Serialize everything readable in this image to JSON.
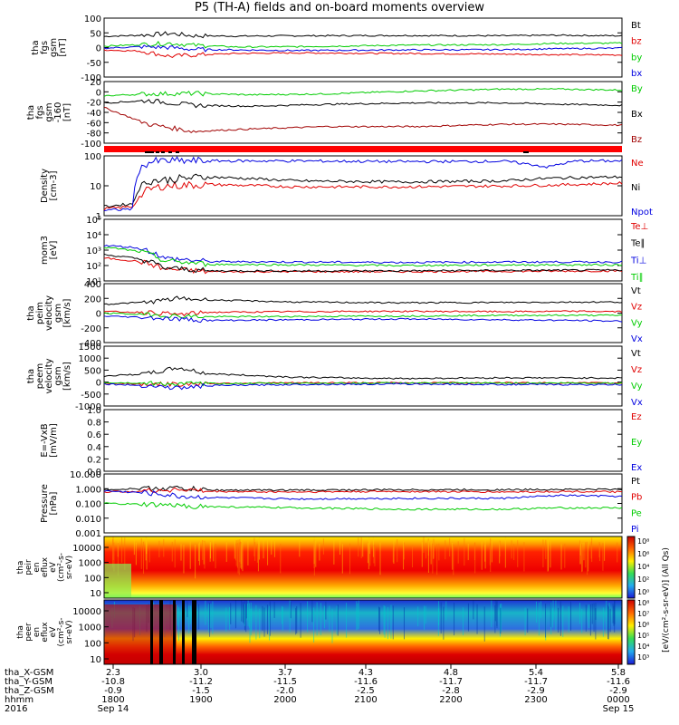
{
  "title": "P5 (TH-A) fields and on-board moments overview",
  "chart_data": [
    {
      "type": "line",
      "panel_id": "fgs",
      "ylabel": [
        "tha",
        "fgs",
        "gsm",
        "[nT]"
      ],
      "yticks": [
        "100",
        "50",
        "0",
        "-50",
        "-100"
      ],
      "ylim": [
        -100,
        100
      ],
      "legend": [
        {
          "label": "Bt",
          "color": "#000000"
        },
        {
          "label": "bz",
          "color": "#e00000"
        },
        {
          "label": "by",
          "color": "#00cc00"
        },
        {
          "label": "bx",
          "color": "#0000e0"
        }
      ],
      "series": [
        {
          "name": "Bt",
          "color": "#000000",
          "x": [
            2.3,
            2.55,
            2.75,
            2.9,
            3.2,
            3.6,
            4.3,
            5.0,
            5.35,
            5.8
          ],
          "y": [
            38,
            42,
            48,
            40,
            39,
            40,
            41,
            40,
            42,
            40
          ]
        },
        {
          "name": "bz",
          "color": "#e00000",
          "x": [
            2.3,
            2.55,
            2.75,
            2.9,
            3.2,
            3.6,
            4.3,
            5.0,
            5.35,
            5.8
          ],
          "y": [
            -8,
            -12,
            -30,
            -25,
            -20,
            -18,
            -20,
            -22,
            -24,
            -25
          ]
        },
        {
          "name": "by",
          "color": "#00cc00",
          "x": [
            2.3,
            2.55,
            2.75,
            2.9,
            3.2,
            3.6,
            4.3,
            5.0,
            5.35,
            5.8
          ],
          "y": [
            5,
            10,
            15,
            8,
            2,
            3,
            8,
            10,
            14,
            15
          ]
        },
        {
          "name": "bx",
          "color": "#0000e0",
          "x": [
            2.3,
            2.55,
            2.75,
            2.9,
            3.2,
            3.6,
            4.3,
            5.0,
            5.35,
            5.8
          ],
          "y": [
            -2,
            3,
            0,
            -6,
            -8,
            -10,
            -8,
            -7,
            -4,
            -2
          ]
        }
      ]
    },
    {
      "type": "line",
      "panel_id": "fgs_sm",
      "ylabel": [
        "tha",
        "fgs",
        "gsm",
        "-160",
        "[nT]"
      ],
      "yticks": [
        "20",
        "0",
        "-20",
        "-40",
        "-60",
        "-80",
        "-100"
      ],
      "ylim": [
        -100,
        30
      ],
      "legend": [
        {
          "label": "By",
          "color": "#00cc00"
        },
        {
          "label": "Bx",
          "color": "#000000"
        },
        {
          "label": "Bz",
          "color": "#a00000"
        }
      ],
      "series": [
        {
          "name": "By",
          "color": "#00cc00",
          "x": [
            2.3,
            2.6,
            2.9,
            3.3,
            3.8,
            4.4,
            5.0,
            5.4,
            5.8
          ],
          "y": [
            0,
            4,
            5,
            2,
            4,
            10,
            14,
            14,
            12
          ]
        },
        {
          "name": "Bx",
          "color": "#000000",
          "x": [
            2.3,
            2.6,
            2.9,
            3.3,
            3.8,
            4.4,
            5.0,
            5.4,
            5.8
          ],
          "y": [
            -15,
            -10,
            -20,
            -22,
            -18,
            -15,
            -15,
            -18,
            -20
          ]
        },
        {
          "name": "Bz",
          "color": "#a00000",
          "x": [
            2.3,
            2.6,
            2.9,
            3.3,
            3.8,
            4.4,
            5.0,
            5.4,
            5.8
          ],
          "y": [
            -25,
            -60,
            -75,
            -70,
            -65,
            -65,
            -60,
            -60,
            -62
          ]
        }
      ]
    },
    {
      "type": "line",
      "panel_id": "density",
      "yscale": "log",
      "ylabel": [
        "Density",
        "[cm-3]"
      ],
      "yticks": [
        "100",
        "10",
        "1"
      ],
      "ylim": [
        0.6,
        250
      ],
      "legend": [
        {
          "label": "Ne",
          "color": "#e00000"
        },
        {
          "label": "Ni",
          "color": "#000000"
        },
        {
          "label": "Npot",
          "color": "#0000e0"
        }
      ],
      "series": [
        {
          "name": "Ne",
          "color": "#e00000",
          "x": [
            2.3,
            2.5,
            2.6,
            2.7,
            3.0,
            3.6,
            4.3,
            5.0,
            5.3,
            5.5,
            5.8
          ],
          "y": [
            1.2,
            1.5,
            8,
            12,
            14,
            11,
            11,
            12,
            13,
            14,
            16
          ]
        },
        {
          "name": "Ni",
          "color": "#000000",
          "x": [
            2.3,
            2.5,
            2.6,
            2.7,
            3.0,
            3.6,
            4.3,
            5.0,
            5.3,
            5.5,
            5.8
          ],
          "y": [
            1.5,
            2,
            20,
            22,
            30,
            20,
            18,
            20,
            26,
            28,
            30
          ]
        },
        {
          "name": "Npot",
          "color": "#0000e0",
          "x": [
            2.3,
            2.5,
            2.6,
            2.7,
            3.0,
            3.6,
            4.3,
            5.0,
            5.3,
            5.5,
            5.8
          ],
          "y": [
            1.0,
            1.2,
            130,
            150,
            150,
            150,
            140,
            145,
            80,
            150,
            150
          ]
        }
      ]
    },
    {
      "type": "line",
      "panel_id": "temperature",
      "yscale": "log",
      "ylabel": [
        "mom3",
        "[eV]"
      ],
      "yticks": [
        "10⁵",
        "10⁴",
        "10³",
        "10²",
        "10¹"
      ],
      "ylim": [
        10,
        100000
      ],
      "legend": [
        {
          "label": "Te⊥",
          "color": "#e00000"
        },
        {
          "label": "Te∥",
          "color": "#000000"
        },
        {
          "label": "Ti⊥",
          "color": "#0000e0"
        },
        {
          "label": "Ti∥",
          "color": "#00cc00"
        }
      ],
      "series": [
        {
          "name": "Te⊥",
          "color": "#e00000",
          "x": [
            2.3,
            2.5,
            2.7,
            3.0,
            3.6,
            4.3,
            5.0,
            5.8
          ],
          "y": [
            300,
            200,
            60,
            40,
            40,
            40,
            42,
            45
          ]
        },
        {
          "name": "Te∥",
          "color": "#000000",
          "x": [
            2.3,
            2.5,
            2.7,
            3.0,
            3.6,
            4.3,
            5.0,
            5.8
          ],
          "y": [
            500,
            300,
            70,
            45,
            45,
            45,
            48,
            50
          ]
        },
        {
          "name": "Ti⊥",
          "color": "#0000e0",
          "x": [
            2.3,
            2.5,
            2.7,
            3.0,
            3.6,
            4.3,
            5.0,
            5.8
          ],
          "y": [
            2000,
            1500,
            300,
            180,
            170,
            160,
            170,
            170
          ]
        },
        {
          "name": "Ti∥",
          "color": "#00cc00",
          "x": [
            2.3,
            2.5,
            2.7,
            3.0,
            3.6,
            4.3,
            5.0,
            5.8
          ],
          "y": [
            1500,
            900,
            200,
            120,
            110,
            100,
            110,
            110
          ]
        }
      ]
    },
    {
      "type": "line",
      "panel_id": "peim_velocity",
      "ylabel": [
        "tha",
        "peim",
        "velocity",
        "gsm",
        "[km/s]"
      ],
      "yticks": [
        "400",
        "200",
        "0",
        "-200",
        "-400"
      ],
      "ylim": [
        -400,
        400
      ],
      "legend": [
        {
          "label": "Vt",
          "color": "#000000"
        },
        {
          "label": "Vz",
          "color": "#e00000"
        },
        {
          "label": "Vy",
          "color": "#00cc00"
        },
        {
          "label": "Vx",
          "color": "#0000e0"
        }
      ],
      "series": [
        {
          "name": "Vt",
          "color": "#000000",
          "x": [
            2.3,
            2.6,
            2.8,
            3.0,
            3.6,
            4.3,
            5.0,
            5.5,
            5.8
          ],
          "y": [
            120,
            150,
            200,
            180,
            150,
            140,
            145,
            150,
            150
          ]
        },
        {
          "name": "Vz",
          "color": "#e00000",
          "x": [
            2.3,
            2.6,
            2.8,
            3.0,
            3.6,
            4.3,
            5.0,
            5.5,
            5.8
          ],
          "y": [
            20,
            10,
            -20,
            10,
            20,
            25,
            20,
            25,
            20
          ]
        },
        {
          "name": "Vy",
          "color": "#00cc00",
          "x": [
            2.3,
            2.6,
            2.8,
            3.0,
            3.6,
            4.3,
            5.0,
            5.5,
            5.8
          ],
          "y": [
            0,
            -20,
            -40,
            -50,
            -45,
            -40,
            -30,
            -30,
            -30
          ]
        },
        {
          "name": "Vx",
          "color": "#0000e0",
          "x": [
            2.3,
            2.6,
            2.8,
            3.0,
            3.6,
            4.3,
            5.0,
            5.5,
            5.8
          ],
          "y": [
            -40,
            -60,
            -80,
            -100,
            -90,
            -80,
            -90,
            -100,
            -110
          ]
        }
      ]
    },
    {
      "type": "line",
      "panel_id": "peem_velocity",
      "ylabel": [
        "tha",
        "peem",
        "velocity",
        "gsm",
        "[km/s]"
      ],
      "yticks": [
        "1500",
        "1000",
        "500",
        "0",
        "-500",
        "-1000"
      ],
      "ylim": [
        -1000,
        1500
      ],
      "legend": [
        {
          "label": "Vt",
          "color": "#000000"
        },
        {
          "label": "Vz",
          "color": "#e00000"
        },
        {
          "label": "Vy",
          "color": "#00cc00"
        },
        {
          "label": "Vx",
          "color": "#0000e0"
        }
      ],
      "series": [
        {
          "name": "Vt",
          "color": "#000000",
          "x": [
            2.3,
            2.6,
            2.8,
            3.0,
            3.6,
            4.3,
            5.0,
            5.8
          ],
          "y": [
            250,
            350,
            600,
            350,
            200,
            150,
            180,
            170
          ]
        },
        {
          "name": "Vz",
          "color": "#e00000",
          "x": [
            2.3,
            2.6,
            2.8,
            3.0,
            3.6,
            4.3,
            5.0,
            5.8
          ],
          "y": [
            -50,
            -80,
            -100,
            -50,
            -30,
            -30,
            -30,
            -40
          ]
        },
        {
          "name": "Vy",
          "color": "#00cc00",
          "x": [
            2.3,
            2.6,
            2.8,
            3.0,
            3.6,
            4.3,
            5.0,
            5.8
          ],
          "y": [
            -20,
            -50,
            -80,
            -60,
            -50,
            -40,
            -40,
            -40
          ]
        },
        {
          "name": "Vx",
          "color": "#0000e0",
          "x": [
            2.3,
            2.6,
            2.8,
            3.0,
            3.6,
            4.3,
            5.0,
            5.8
          ],
          "y": [
            -80,
            -150,
            -250,
            -150,
            -100,
            -80,
            -100,
            -110
          ]
        }
      ]
    },
    {
      "type": "line",
      "panel_id": "efield",
      "ylabel": [
        "E=-VxB",
        "[mV/m]"
      ],
      "yticks": [
        "1.0",
        "0.8",
        "0.6",
        "0.4",
        "0.2",
        "0.0"
      ],
      "ylim": [
        0,
        1
      ],
      "legend": [
        {
          "label": "Ez",
          "color": "#e00000"
        },
        {
          "label": "Ey",
          "color": "#00cc00"
        },
        {
          "label": "Ex",
          "color": "#0000e0"
        }
      ],
      "series": []
    },
    {
      "type": "line",
      "panel_id": "pressure",
      "yscale": "log",
      "ylabel": [
        "Pressure",
        "[nPa]"
      ],
      "yticks": [
        "10.000",
        "1.000",
        "0.100",
        "0.010",
        "0.001"
      ],
      "ylim": [
        0.001,
        10
      ],
      "legend": [
        {
          "label": "Pt",
          "color": "#000000"
        },
        {
          "label": "Pb",
          "color": "#e00000"
        },
        {
          "label": "Pe",
          "color": "#00cc00"
        },
        {
          "label": "Pi",
          "color": "#0000e0"
        }
      ],
      "series": [
        {
          "name": "Pt",
          "color": "#000000",
          "x": [
            2.3,
            2.6,
            2.8,
            3.0,
            3.6,
            4.3,
            5.0,
            5.4,
            5.8
          ],
          "y": [
            0.9,
            1.0,
            1.1,
            0.8,
            0.8,
            0.85,
            0.85,
            0.9,
            0.9
          ]
        },
        {
          "name": "Pb",
          "color": "#e00000",
          "x": [
            2.3,
            2.6,
            2.8,
            3.0,
            3.6,
            4.3,
            5.0,
            5.4,
            5.8
          ],
          "y": [
            0.6,
            0.7,
            0.9,
            0.65,
            0.6,
            0.65,
            0.6,
            0.65,
            0.6
          ]
        },
        {
          "name": "Pe",
          "color": "#00cc00",
          "x": [
            2.3,
            2.6,
            2.8,
            3.0,
            3.6,
            4.3,
            5.0,
            5.4,
            5.8
          ],
          "y": [
            0.1,
            0.08,
            0.07,
            0.06,
            0.05,
            0.04,
            0.04,
            0.05,
            0.05
          ]
        },
        {
          "name": "Pi",
          "color": "#0000e0",
          "x": [
            2.3,
            2.6,
            2.8,
            3.0,
            3.6,
            4.3,
            5.0,
            5.4,
            5.8
          ],
          "y": [
            0.7,
            0.5,
            0.3,
            0.25,
            0.2,
            0.22,
            0.22,
            0.35,
            0.3
          ]
        }
      ]
    },
    {
      "type": "heatmap",
      "panel_id": "peir_spectrogram",
      "ylabel": [
        "tha",
        "peir",
        "en",
        "eflux",
        "eV",
        "(cm²-s-",
        "sr-eV)"
      ],
      "yticks": [
        "10000",
        "1000",
        "100",
        "10"
      ],
      "yscale": "log"
    },
    {
      "type": "heatmap",
      "panel_id": "peer_spectrogram",
      "ylabel": [
        "tha",
        "peer",
        "en",
        "eflux",
        "eV",
        "(cm²-s-",
        "sr-eV)"
      ],
      "yticks": [
        "10000",
        "1000",
        "100",
        "10"
      ],
      "yscale": "log"
    }
  ],
  "colorbar": {
    "label": "[eV/(cm²-s-sr-eV)] (All Qs)",
    "upper_ticks": [
      "10⁸",
      "10⁶",
      "10⁴",
      "10²",
      "10⁰"
    ],
    "lower_ticks": [
      "10⁸",
      "10⁷",
      "10⁶",
      "10⁵",
      "10⁴",
      "10³"
    ]
  },
  "xaxis": {
    "row_labels": [
      "tha_X-GSM",
      "tha_Y-GSM",
      "tha_Z-GSM",
      "hhmm",
      "2016"
    ],
    "columns": [
      {
        "x": [
          "2.3",
          "-10.8",
          "-0.9",
          "1800",
          "Sep 14"
        ]
      },
      {
        "x": [
          "3.0",
          "-11.2",
          "-1.5",
          "1900",
          ""
        ]
      },
      {
        "x": [
          "3.7",
          "-11.5",
          "-2.0",
          "2000",
          ""
        ]
      },
      {
        "x": [
          "4.3",
          "-11.6",
          "-2.5",
          "2100",
          ""
        ]
      },
      {
        "x": [
          "4.8",
          "-11.7",
          "-2.8",
          "2200",
          ""
        ]
      },
      {
        "x": [
          "5.4",
          "-11.7",
          "-2.9",
          "2300",
          ""
        ]
      },
      {
        "x": [
          "5.8",
          "-11.6",
          "-2.9",
          "0000",
          "Sep 15"
        ]
      }
    ]
  }
}
